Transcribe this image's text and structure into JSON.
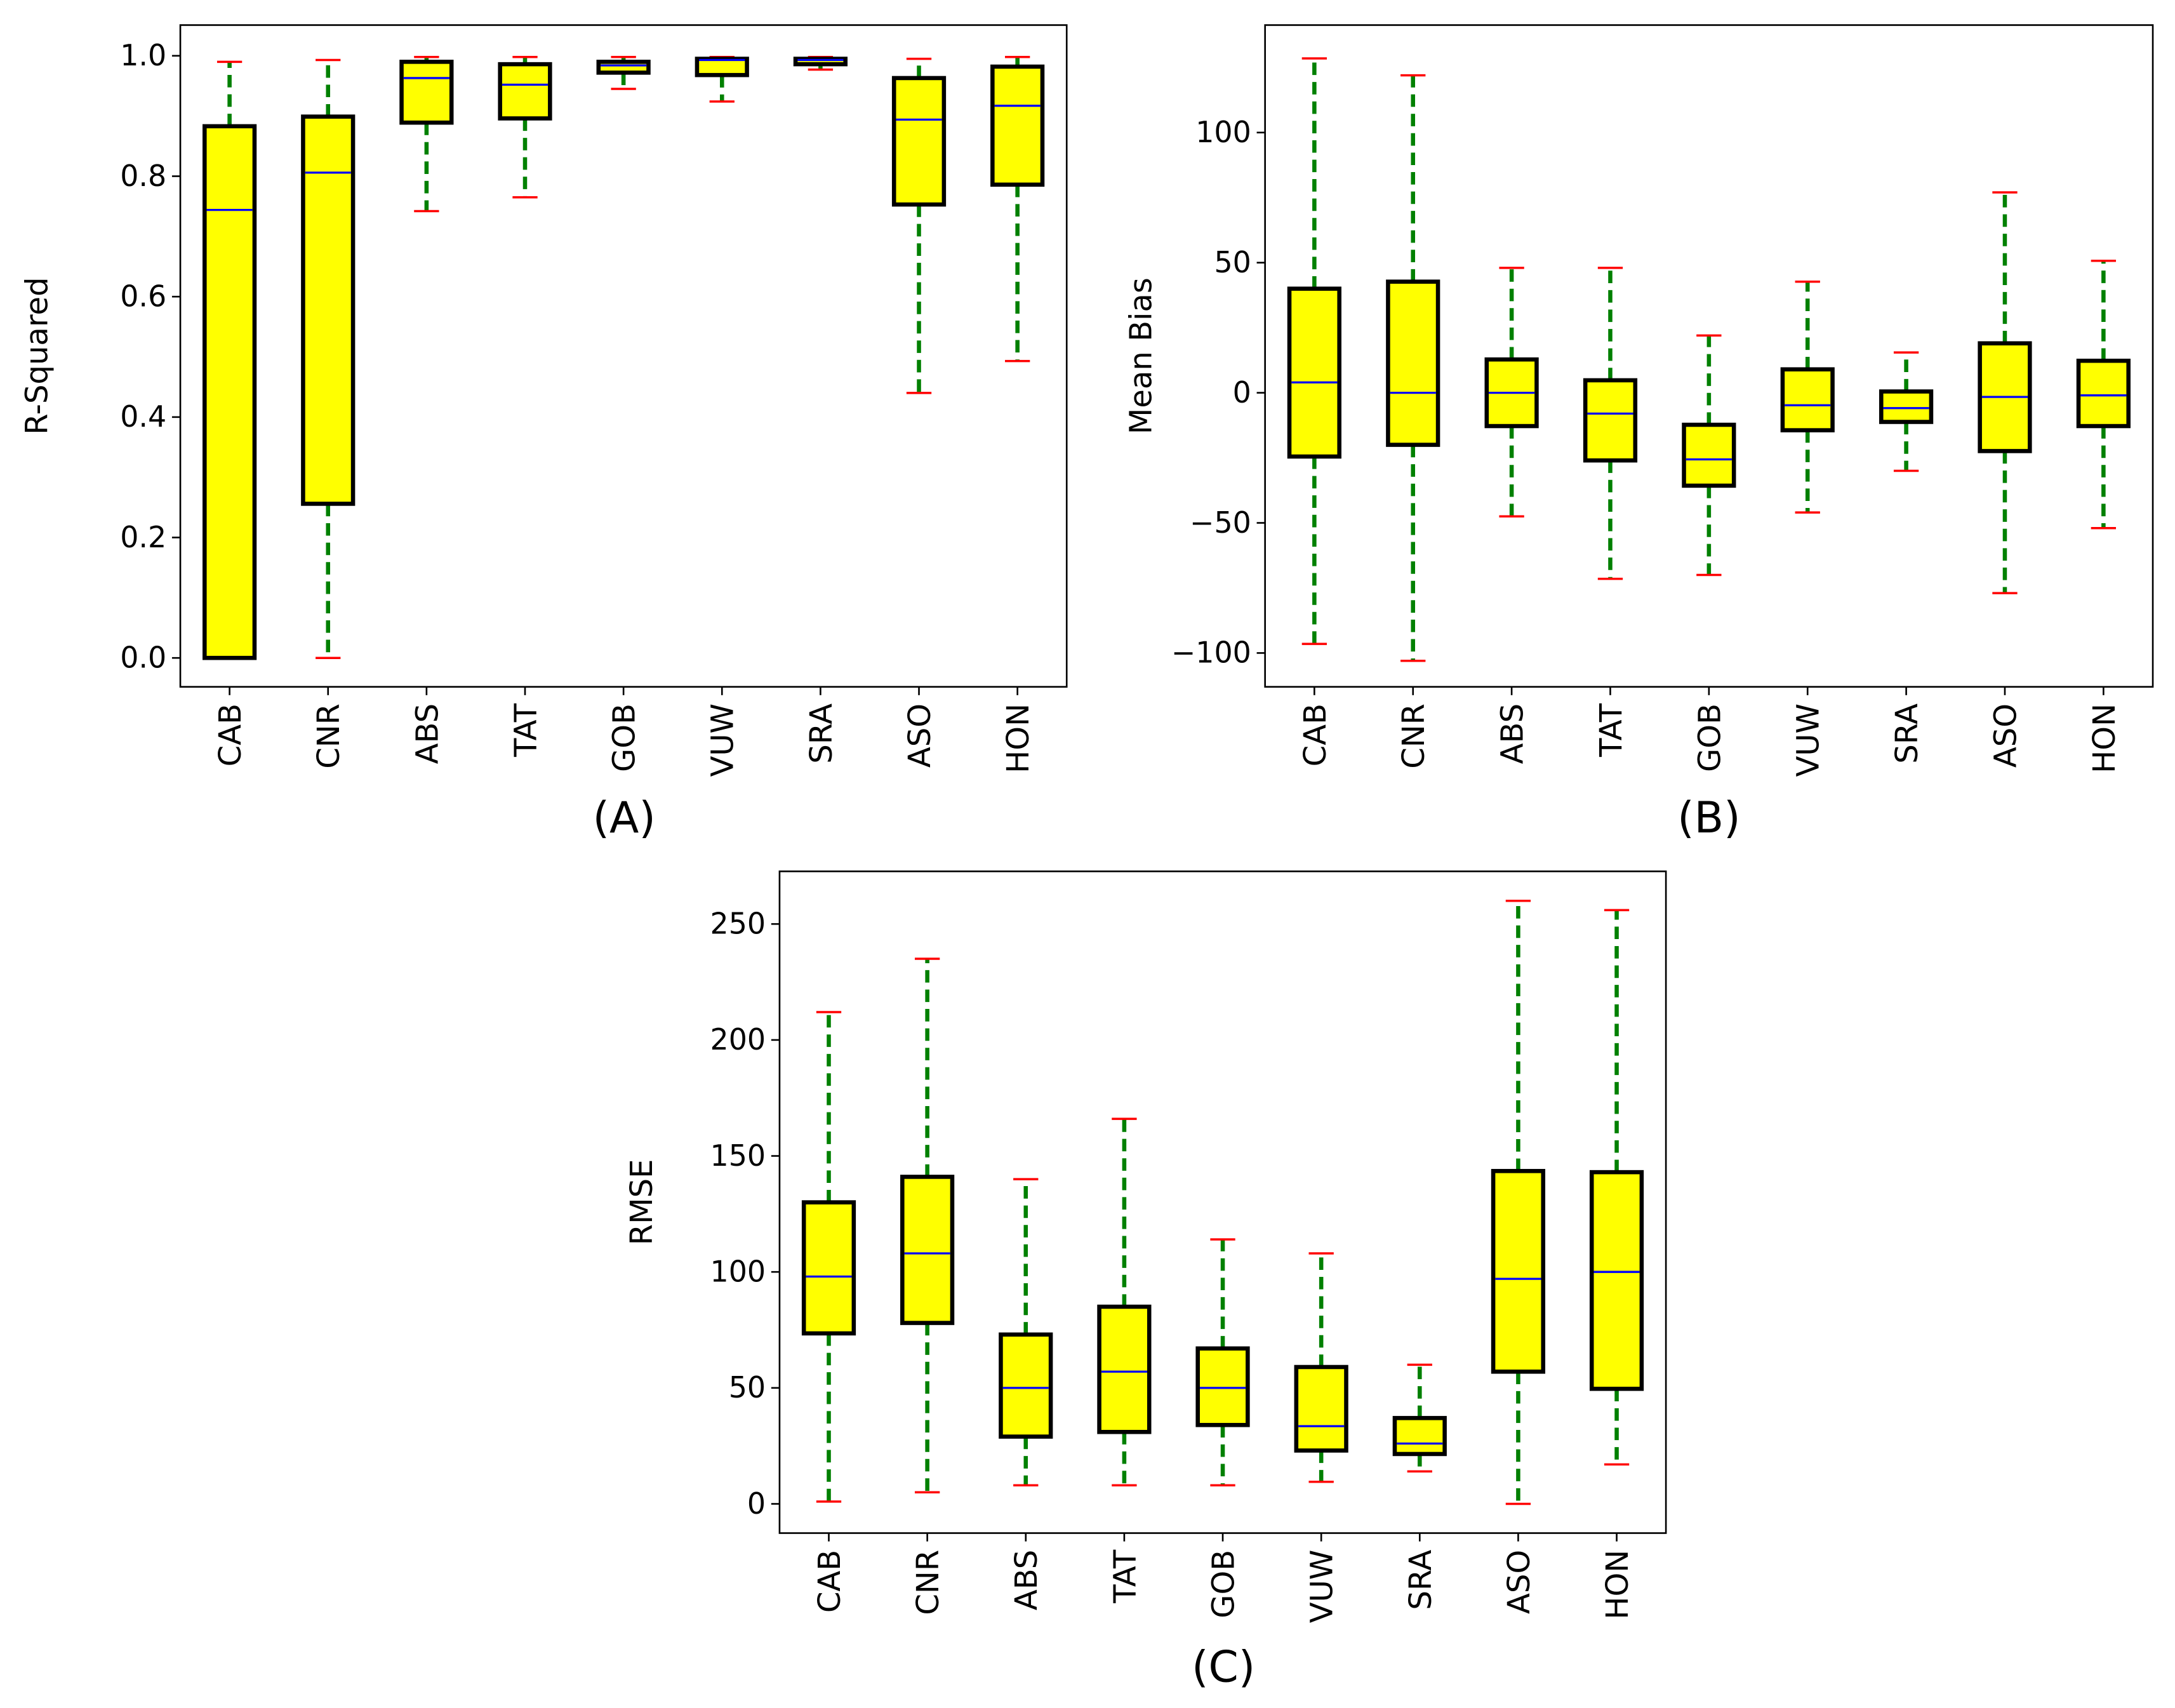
{
  "chart_data": [
    {
      "type": "box",
      "panel_label": "(A)",
      "title": "",
      "xlabel": "",
      "ylabel": "R-Squared",
      "ylim": [
        -0.048,
        1.051
      ],
      "yticks": [
        0.0,
        0.2,
        0.4,
        0.6,
        0.8,
        1.0
      ],
      "ytick_labels": [
        "0.0",
        "0.2",
        "0.4",
        "0.6",
        "0.8",
        "1.0"
      ],
      "categories": [
        "CAB",
        "CNR",
        "ABS",
        "TAT",
        "GOB",
        "VUW",
        "SRA",
        "ASO",
        "HON"
      ],
      "boxes": [
        {
          "whislo": 0.0,
          "q1": 0.0,
          "med": 0.744,
          "q3": 0.883,
          "whishi": 0.99
        },
        {
          "whislo": 0.0,
          "q1": 0.256,
          "med": 0.806,
          "q3": 0.899,
          "whishi": 0.993
        },
        {
          "whislo": 0.742,
          "q1": 0.889,
          "med": 0.963,
          "q3": 0.99,
          "whishi": 0.998
        },
        {
          "whislo": 0.765,
          "q1": 0.896,
          "med": 0.952,
          "q3": 0.986,
          "whishi": 0.998
        },
        {
          "whislo": 0.945,
          "q1": 0.972,
          "med": 0.984,
          "q3": 0.99,
          "whishi": 0.998
        },
        {
          "whislo": 0.924,
          "q1": 0.968,
          "med": 0.993,
          "q3": 0.995,
          "whishi": 0.998
        },
        {
          "whislo": 0.977,
          "q1": 0.986,
          "med": 0.993,
          "q3": 0.995,
          "whishi": 0.998
        },
        {
          "whislo": 0.44,
          "q1": 0.753,
          "med": 0.894,
          "q3": 0.963,
          "whishi": 0.995
        },
        {
          "whislo": 0.493,
          "q1": 0.786,
          "med": 0.917,
          "q3": 0.982,
          "whishi": 0.998
        }
      ]
    },
    {
      "type": "box",
      "panel_label": "(B)",
      "title": "",
      "xlabel": "",
      "ylabel": "Mean Bias",
      "ylim": [
        -113,
        141.3
      ],
      "yticks": [
        -100,
        -50,
        0,
        50,
        100
      ],
      "ytick_labels": [
        "−100",
        "−50",
        "0",
        "50",
        "100"
      ],
      "categories": [
        "CAB",
        "CNR",
        "ABS",
        "TAT",
        "GOB",
        "VUW",
        "SRA",
        "ASO",
        "HON"
      ],
      "boxes": [
        {
          "whislo": -96.5,
          "q1": -24.5,
          "med": 4,
          "q3": 40,
          "whishi": 128.5
        },
        {
          "whislo": -103,
          "q1": -20,
          "med": 0,
          "q3": 42.7,
          "whishi": 122
        },
        {
          "whislo": -47.5,
          "q1": -12.8,
          "med": 0,
          "q3": 12.8,
          "whishi": 48
        },
        {
          "whislo": -71.5,
          "q1": -26,
          "med": -8,
          "q3": 4.8,
          "whishi": 48
        },
        {
          "whislo": -70,
          "q1": -35.7,
          "med": -25.6,
          "q3": -12.3,
          "whishi": 22
        },
        {
          "whislo": -46,
          "q1": -14.4,
          "med": -4.8,
          "q3": 9,
          "whishi": 42.7
        },
        {
          "whislo": -30,
          "q1": -11.2,
          "med": -5.9,
          "q3": 0.5,
          "whishi": 15.5
        },
        {
          "whislo": -77,
          "q1": -22.4,
          "med": -1.6,
          "q3": 19,
          "whishi": 77
        },
        {
          "whislo": -52,
          "q1": -12.8,
          "med": -1,
          "q3": 12.3,
          "whishi": 50.7
        }
      ]
    },
    {
      "type": "box",
      "panel_label": "(C)",
      "title": "",
      "xlabel": "",
      "ylabel": "RMSE",
      "ylim": [
        -12.6,
        272.7
      ],
      "yticks": [
        0,
        50,
        100,
        150,
        200,
        250
      ],
      "ytick_labels": [
        "0",
        "50",
        "100",
        "150",
        "200",
        "250"
      ],
      "categories": [
        "CAB",
        "CNR",
        "ABS",
        "TAT",
        "GOB",
        "VUW",
        "SRA",
        "ASO",
        "HON"
      ],
      "boxes": [
        {
          "whislo": 1,
          "q1": 73.5,
          "med": 98,
          "q3": 130,
          "whishi": 212
        },
        {
          "whislo": 5,
          "q1": 78,
          "med": 108,
          "q3": 141,
          "whishi": 235
        },
        {
          "whislo": 8,
          "q1": 29,
          "med": 50,
          "q3": 73,
          "whishi": 140
        },
        {
          "whislo": 8,
          "q1": 31,
          "med": 57,
          "q3": 85,
          "whishi": 166
        },
        {
          "whislo": 8,
          "q1": 34,
          "med": 50,
          "q3": 67,
          "whishi": 114
        },
        {
          "whislo": 9.5,
          "q1": 23,
          "med": 33.5,
          "q3": 59,
          "whishi": 108
        },
        {
          "whislo": 14,
          "q1": 21.5,
          "med": 26,
          "q3": 37,
          "whishi": 60
        },
        {
          "whislo": 0,
          "q1": 57,
          "med": 97,
          "q3": 143.5,
          "whishi": 260
        },
        {
          "whislo": 17,
          "q1": 49.6,
          "med": 100,
          "q3": 143,
          "whishi": 256
        }
      ]
    }
  ],
  "style": {
    "box_fill": "#ffff00",
    "box_edge": "#000000",
    "median_color": "#0000ff",
    "whisker_color": "#008000",
    "cap_color": "#ff0000"
  }
}
